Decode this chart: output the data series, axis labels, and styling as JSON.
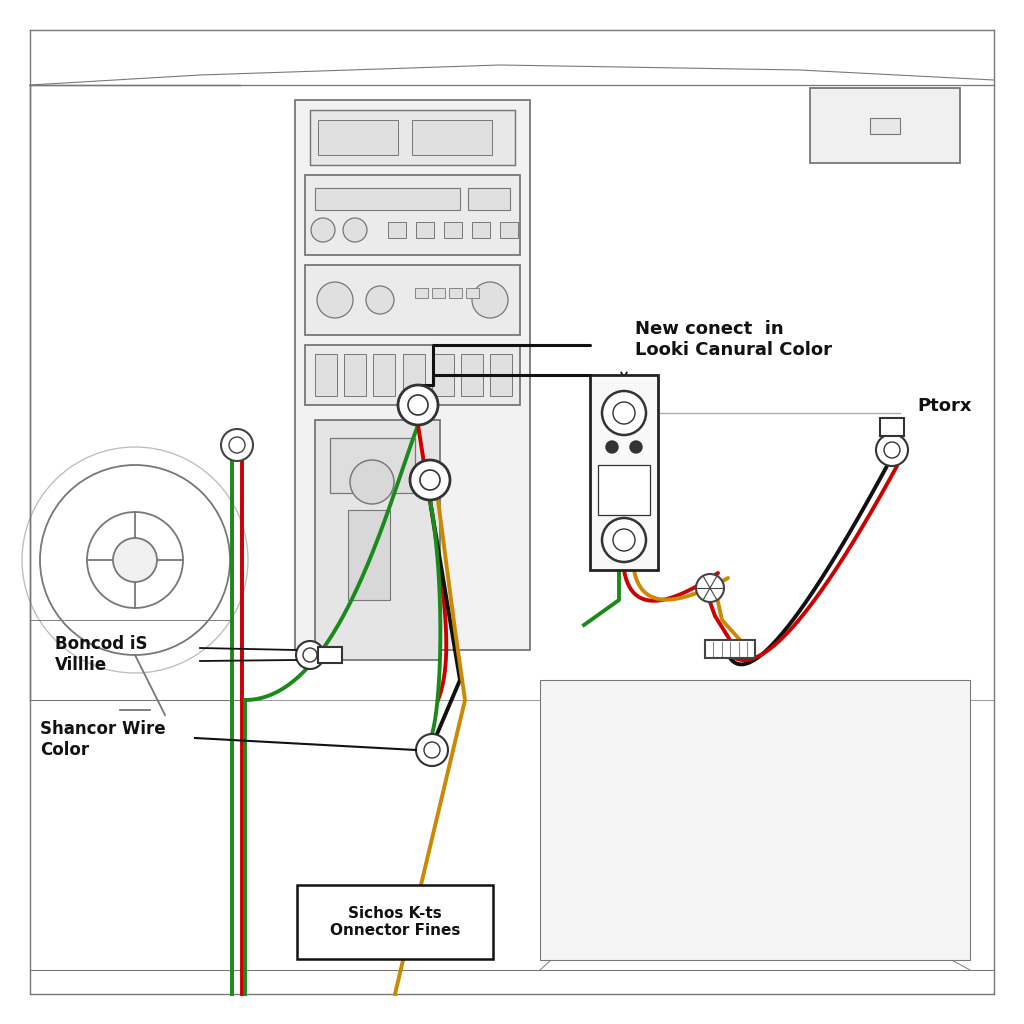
{
  "background_color": "#ffffff",
  "dash_color": "#777777",
  "wire_colors": {
    "red": "#cc0000",
    "green": "#1a8a1a",
    "black": "#111111",
    "gold": "#cc8800"
  },
  "labels": {
    "new_connect": "New conect  in\nLooki Canural Color",
    "boncod": "Boncod iS\nVilllie",
    "shancor": "Shancor Wire\nColor",
    "sichos": "Sichos K-ts\nOnnector Fines",
    "ptorx": "Ptorx"
  },
  "lw_dash": 1.3,
  "lw_wire": 2.8
}
